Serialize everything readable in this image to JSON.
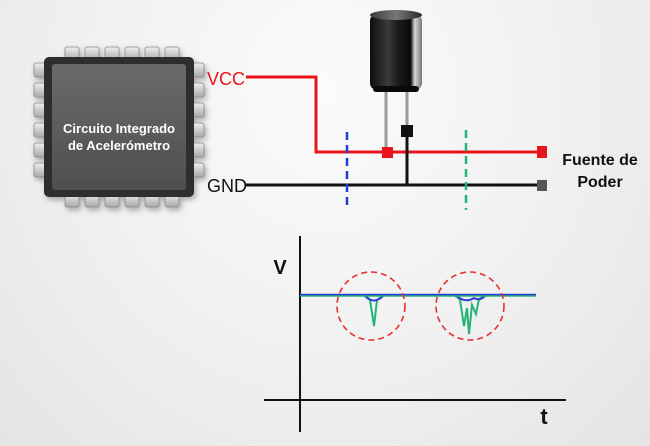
{
  "chip": {
    "line1": "Circuito Integrado",
    "line2": "de Acelerómetro",
    "body_color": "#5e5e5e",
    "pin_color": "#cfcfcf"
  },
  "labels": {
    "vcc": "VCC",
    "gnd": "GND",
    "supply_line1": "Fuente de",
    "supply_line2": "Poder"
  },
  "plot": {
    "y_label": "V",
    "x_label": "t"
  },
  "colors": {
    "vcc_line": "#e8141c",
    "gnd_line": "#111111",
    "vcc_text": "#e8141c",
    "blue_marker": "#1f3fd6",
    "green_marker": "#22b573",
    "signal_green": "#22b573",
    "signal_blue": "#2b3fd6",
    "highlight_circle": "#e83030",
    "capacitor_body": "#1c1c1c"
  }
}
